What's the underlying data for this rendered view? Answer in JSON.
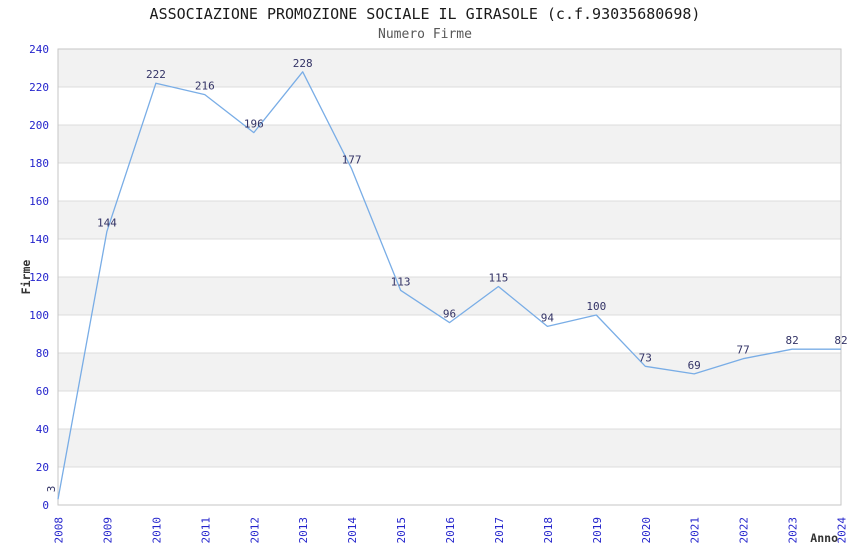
{
  "header": {
    "title": "ASSOCIAZIONE PROMOZIONE SOCIALE IL GIRASOLE (c.f.93035680698)",
    "subtitle": "Numero Firme"
  },
  "chart_data": {
    "type": "line",
    "title": "ASSOCIAZIONE PROMOZIONE SOCIALE IL GIRASOLE (c.f.93035680698)",
    "subtitle": "Numero Firme",
    "x": [
      2008,
      2009,
      2010,
      2011,
      2012,
      2013,
      2014,
      2015,
      2016,
      2017,
      2018,
      2019,
      2020,
      2021,
      2022,
      2023,
      2024
    ],
    "values": [
      3,
      144,
      222,
      216,
      196,
      228,
      177,
      113,
      96,
      115,
      94,
      100,
      73,
      69,
      77,
      82,
      82
    ],
    "xlabel": "Anno",
    "ylabel": "Firme",
    "ylim": [
      0,
      240
    ],
    "ytick_step": 20,
    "yticks": [
      0,
      20,
      40,
      60,
      80,
      100,
      120,
      140,
      160,
      180,
      200,
      220,
      240
    ],
    "grid": true,
    "legend_position": "none",
    "point_labels_shown": true,
    "colors": {
      "line": "#79ade6",
      "tick_label": "#2424cc",
      "point_label": "#333366",
      "band": "#f2f2f2",
      "gridline": "#dcdcdc",
      "border": "#c6c6c6",
      "title": "#1a1a1a",
      "subtitle": "#575757",
      "axis_title": "#333333",
      "background": "#ffffff"
    }
  }
}
